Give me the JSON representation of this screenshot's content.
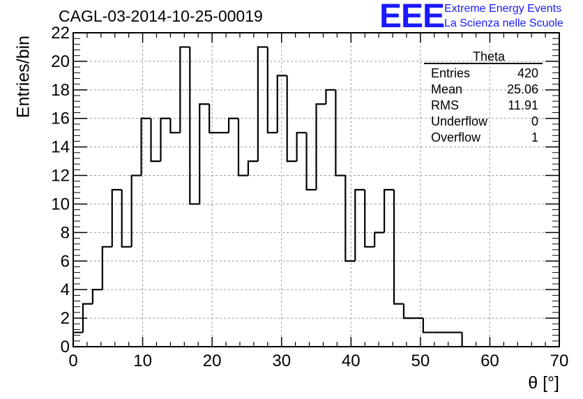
{
  "chart_data": {
    "type": "bar",
    "title": "CAGL-03-2014-10-25-00019",
    "xlabel": "θ [°]",
    "ylabel": "Entries/bin",
    "xlim": [
      0,
      70
    ],
    "ylim": [
      0,
      22
    ],
    "xticks": [
      "0",
      "10",
      "20",
      "30",
      "40",
      "50",
      "60",
      "70"
    ],
    "yticks": [
      "0",
      "2",
      "4",
      "6",
      "8",
      "10",
      "12",
      "14",
      "16",
      "18",
      "20",
      "22"
    ],
    "grid": true,
    "bin_width": 1.4,
    "bin_edges_start": 0,
    "values": [
      1,
      3,
      4,
      7,
      11,
      7,
      12,
      16,
      13,
      16,
      15,
      21,
      10,
      17,
      15,
      15,
      16,
      12,
      13,
      21,
      15,
      19,
      13,
      15,
      11,
      17,
      18,
      12,
      6,
      11,
      7,
      8,
      11,
      3,
      2,
      2,
      1,
      1,
      1,
      1
    ],
    "stats_box": {
      "title": "Theta",
      "rows": [
        {
          "label": "Entries",
          "value": "420"
        },
        {
          "label": "Mean",
          "value": "25.06"
        },
        {
          "label": "RMS",
          "value": "11.91"
        },
        {
          "label": "Underflow",
          "value": "0"
        },
        {
          "label": "Overflow",
          "value": "1"
        }
      ]
    }
  },
  "logo": {
    "mark": "EEE",
    "line1": "Extreme Energy Events",
    "line2": "La Scienza nelle Scuole"
  }
}
